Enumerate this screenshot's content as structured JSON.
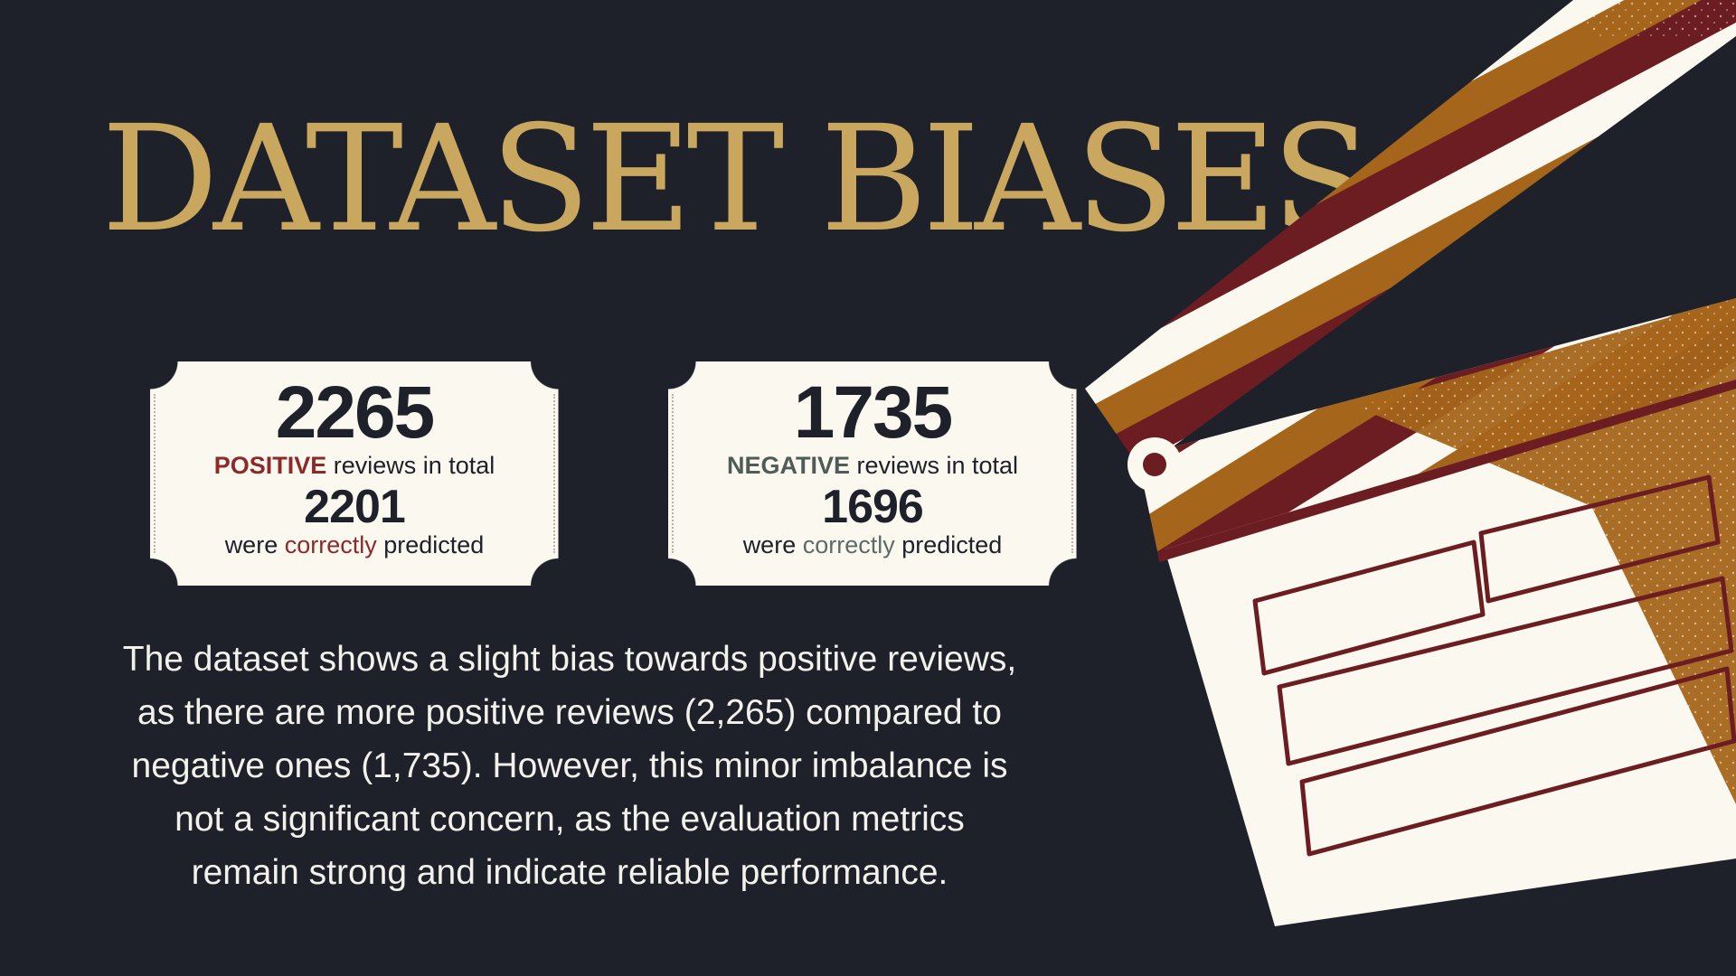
{
  "title": "DATASET BIASES",
  "positive_card": {
    "total": "2265",
    "label_word": "POSITIVE",
    "label_rest": " reviews in total",
    "correct": "2201",
    "pred_pre": "were ",
    "pred_word": "correctly",
    "pred_post": " predicted"
  },
  "negative_card": {
    "total": "1735",
    "label_word": "NEGATIVE",
    "label_rest": " reviews in total",
    "correct": "1696",
    "pred_pre": "were ",
    "pred_word": "correctly",
    "pred_post": " predicted"
  },
  "paragraph": "The dataset shows a slight bias towards positive reviews, as there are more positive reviews (2,265) compared to negative ones (1,735). However, this minor imbalance is not a significant concern, as the evaluation metrics remain strong and indicate reliable performance.",
  "colors": {
    "background": "#1e202a",
    "title_gold": "#c9a75e",
    "card_cream": "#fbf8ef",
    "positive_red": "#8c2a2a",
    "negative_gray": "#4f5b57",
    "clapper_maroon": "#6b1d22",
    "clapper_ochre": "#a5651a"
  },
  "illustration": "clapperboard-icon"
}
